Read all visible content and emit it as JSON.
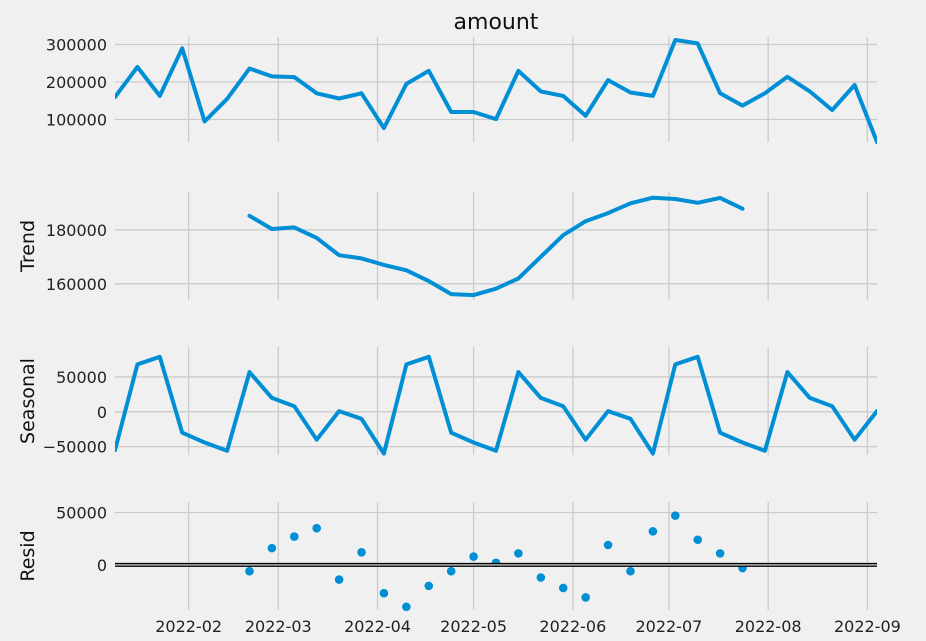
{
  "chart_data": [
    {
      "panel": "observed",
      "type": "line",
      "title": "amount",
      "ylabel": "",
      "yticks": [
        100000,
        200000,
        300000
      ],
      "ylim": [
        40000,
        320000
      ],
      "color": "#008fd5",
      "x": [
        "2022-01-09",
        "2022-01-16",
        "2022-01-23",
        "2022-01-30",
        "2022-02-06",
        "2022-02-13",
        "2022-02-20",
        "2022-02-27",
        "2022-03-06",
        "2022-03-13",
        "2022-03-20",
        "2022-03-27",
        "2022-04-03",
        "2022-04-10",
        "2022-04-17",
        "2022-04-24",
        "2022-05-01",
        "2022-05-08",
        "2022-05-15",
        "2022-05-22",
        "2022-05-29",
        "2022-06-05",
        "2022-06-12",
        "2022-06-19",
        "2022-06-26",
        "2022-07-03",
        "2022-07-10",
        "2022-07-17",
        "2022-07-24",
        "2022-07-31",
        "2022-08-07",
        "2022-08-14",
        "2022-08-21",
        "2022-08-28",
        "2022-09-04"
      ],
      "values": [
        160000,
        240000,
        163000,
        290000,
        95000,
        155000,
        236000,
        215000,
        213000,
        170000,
        156000,
        170000,
        77000,
        195000,
        230000,
        120000,
        120000,
        101000,
        230000,
        175000,
        163000,
        110000,
        205000,
        172000,
        163000,
        312000,
        303000,
        170000,
        137000,
        170000,
        214000,
        175000,
        125000,
        192000,
        40000
      ]
    },
    {
      "panel": "trend",
      "type": "line",
      "title": "",
      "ylabel": "Trend",
      "yticks": [
        160000,
        180000
      ],
      "ylim": [
        154000,
        194000
      ],
      "color": "#008fd5",
      "x": [
        "2022-02-20",
        "2022-02-27",
        "2022-03-06",
        "2022-03-13",
        "2022-03-20",
        "2022-03-27",
        "2022-04-03",
        "2022-04-10",
        "2022-04-17",
        "2022-04-24",
        "2022-05-01",
        "2022-05-08",
        "2022-05-15",
        "2022-05-22",
        "2022-05-29",
        "2022-06-05",
        "2022-06-12",
        "2022-06-19",
        "2022-06-26",
        "2022-07-03",
        "2022-07-10",
        "2022-07-17",
        "2022-07-24"
      ],
      "values": [
        185200,
        180300,
        180900,
        177000,
        170600,
        169400,
        167000,
        165000,
        161000,
        156200,
        155800,
        158200,
        162000,
        170000,
        178000,
        183200,
        186200,
        189800,
        191900,
        191400,
        190000,
        191800,
        187800
      ]
    },
    {
      "panel": "seasonal",
      "type": "line",
      "title": "",
      "ylabel": "Seasonal",
      "yticks": [
        -50000,
        0,
        50000
      ],
      "ylim": [
        -62000,
        93000
      ],
      "color": "#008fd5",
      "x": [
        "2022-01-09",
        "2022-01-16",
        "2022-01-23",
        "2022-01-30",
        "2022-02-06",
        "2022-02-13",
        "2022-02-20",
        "2022-02-27",
        "2022-03-06",
        "2022-03-13",
        "2022-03-20",
        "2022-03-27",
        "2022-04-03",
        "2022-04-10",
        "2022-04-17",
        "2022-04-24",
        "2022-05-01",
        "2022-05-08",
        "2022-05-15",
        "2022-05-22",
        "2022-05-29",
        "2022-06-05",
        "2022-06-12",
        "2022-06-19",
        "2022-06-26",
        "2022-07-03",
        "2022-07-10",
        "2022-07-17",
        "2022-07-24",
        "2022-07-31",
        "2022-08-07",
        "2022-08-14",
        "2022-08-21",
        "2022-08-28",
        "2022-09-04"
      ],
      "values": [
        -55000,
        68000,
        79000,
        -30000,
        -44000,
        -56000,
        57000,
        20000,
        8000,
        -40000,
        1000,
        -10000,
        -60000,
        68000,
        79000,
        -30000,
        -44000,
        -56000,
        57000,
        20000,
        8000,
        -40000,
        1000,
        -10000,
        -60000,
        68000,
        79000,
        -30000,
        -44000,
        -56000,
        57000,
        20000,
        8000,
        -40000,
        1000
      ]
    },
    {
      "panel": "resid",
      "type": "scatter",
      "title": "",
      "ylabel": "Resid",
      "yticks": [
        0,
        50000
      ],
      "ylim": [
        -43000,
        60000
      ],
      "color": "#008fd5",
      "baseline": 0,
      "x": [
        "2022-02-20",
        "2022-02-27",
        "2022-03-06",
        "2022-03-13",
        "2022-03-20",
        "2022-03-27",
        "2022-04-03",
        "2022-04-10",
        "2022-04-17",
        "2022-04-24",
        "2022-05-01",
        "2022-05-08",
        "2022-05-15",
        "2022-05-22",
        "2022-05-29",
        "2022-06-05",
        "2022-06-12",
        "2022-06-19",
        "2022-06-26",
        "2022-07-03",
        "2022-07-10",
        "2022-07-17",
        "2022-07-24"
      ],
      "values": [
        -6000,
        16000,
        27000,
        35000,
        -14000,
        12000,
        -27000,
        -40000,
        -20000,
        -6000,
        8000,
        2000,
        11000,
        -12000,
        -22000,
        -31000,
        19000,
        -6000,
        32000,
        47000,
        24000,
        11000,
        -3000
      ]
    }
  ],
  "x_axis": {
    "type": "date",
    "range": [
      "2022-01-09",
      "2022-09-04"
    ],
    "tick_labels": [
      "2022-02",
      "2022-03",
      "2022-04",
      "2022-05",
      "2022-06",
      "2022-07",
      "2022-08",
      "2022-09"
    ],
    "tick_dates": [
      "2022-02-01",
      "2022-03-01",
      "2022-04-01",
      "2022-05-01",
      "2022-06-01",
      "2022-07-01",
      "2022-08-01",
      "2022-09-01"
    ]
  },
  "style": {
    "background": "#f0f0f0",
    "grid": "#cbcbcb",
    "baseline": "#000000"
  },
  "grid": true
}
